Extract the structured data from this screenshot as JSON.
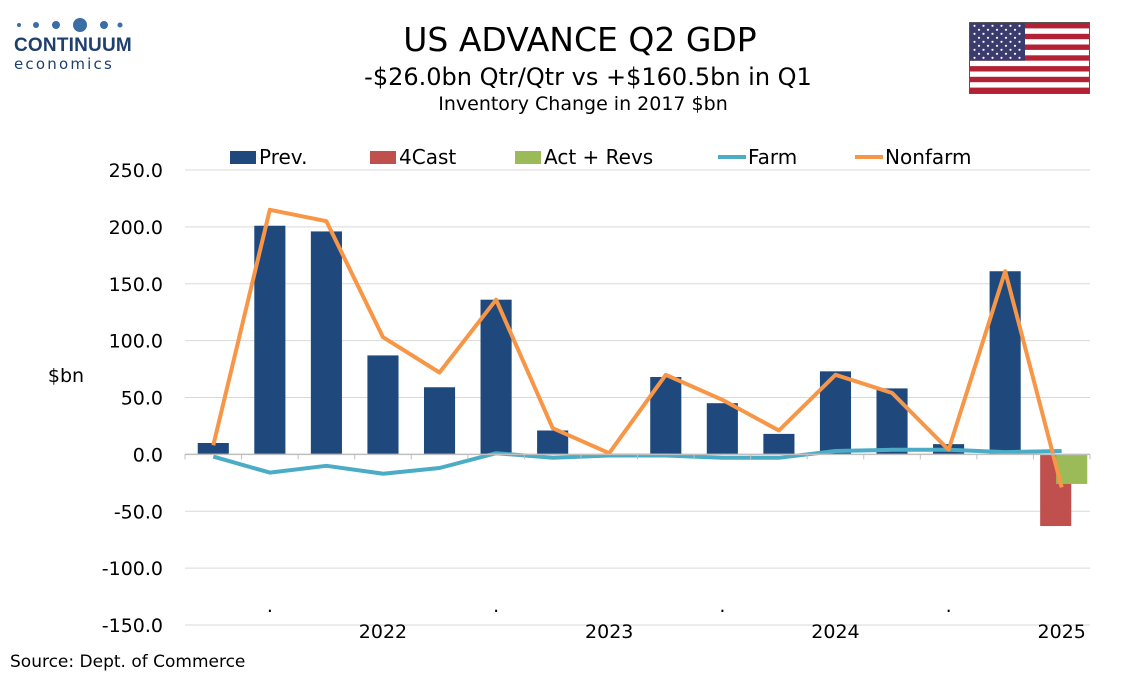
{
  "logo": {
    "name": "CONTINUUM",
    "sub": "economics"
  },
  "header": {
    "title": "US ADVANCE Q2  GDP",
    "subtitle": "-$26.0bn Qtr/Qtr vs +$160.5bn in Q1",
    "subtitle2": "Inventory Change in 2017 $bn"
  },
  "source": "Source: Dept. of Commerce",
  "flag_icon": "us-flag-icon",
  "colors": {
    "prev": "#1f497d",
    "forecast": "#c0504d",
    "actual": "#9bbb59",
    "farm": "#4bacc6",
    "nonfarm": "#f79646"
  },
  "chart_data": {
    "type": "bar",
    "ylabel": "$bn",
    "ylim": [
      -150,
      250
    ],
    "yticks": [
      "250.0",
      "200.0",
      "150.0",
      "100.0",
      "50.0",
      "0.0",
      "-50.0",
      "-100.0",
      "-150.0"
    ],
    "x_year_labels": [
      "2022",
      "2023",
      "2024",
      "2025"
    ],
    "x_dot_labels": [
      ".",
      ".",
      ".",
      "."
    ],
    "legend": [
      "Prev.",
      "4Cast",
      "Act + Revs",
      "Farm",
      "Nonfarm"
    ],
    "grid": true,
    "legend_position": "top",
    "series": [
      {
        "name": "Prev.",
        "kind": "bar",
        "values": [
          10,
          201,
          196,
          87,
          59,
          136,
          21,
          null,
          68,
          45,
          18,
          73,
          58,
          9,
          161,
          null
        ]
      },
      {
        "name": "4Cast",
        "kind": "bar",
        "values": [
          null,
          null,
          null,
          null,
          null,
          null,
          null,
          null,
          null,
          null,
          null,
          null,
          null,
          null,
          null,
          -63
        ]
      },
      {
        "name": "Act + Revs",
        "kind": "bar",
        "values": [
          null,
          null,
          null,
          null,
          null,
          null,
          null,
          null,
          null,
          null,
          null,
          null,
          null,
          null,
          null,
          -26
        ]
      },
      {
        "name": "Farm",
        "kind": "line",
        "values": [
          -2,
          -16,
          -10,
          -17,
          -12,
          1,
          -3,
          -1,
          -1,
          -3,
          -3,
          3,
          4,
          4,
          2,
          3
        ]
      },
      {
        "name": "Nonfarm",
        "kind": "line",
        "values": [
          8,
          215,
          205,
          103,
          72,
          136,
          23,
          1,
          70,
          48,
          21,
          70,
          54,
          4,
          161,
          -29
        ]
      }
    ]
  }
}
